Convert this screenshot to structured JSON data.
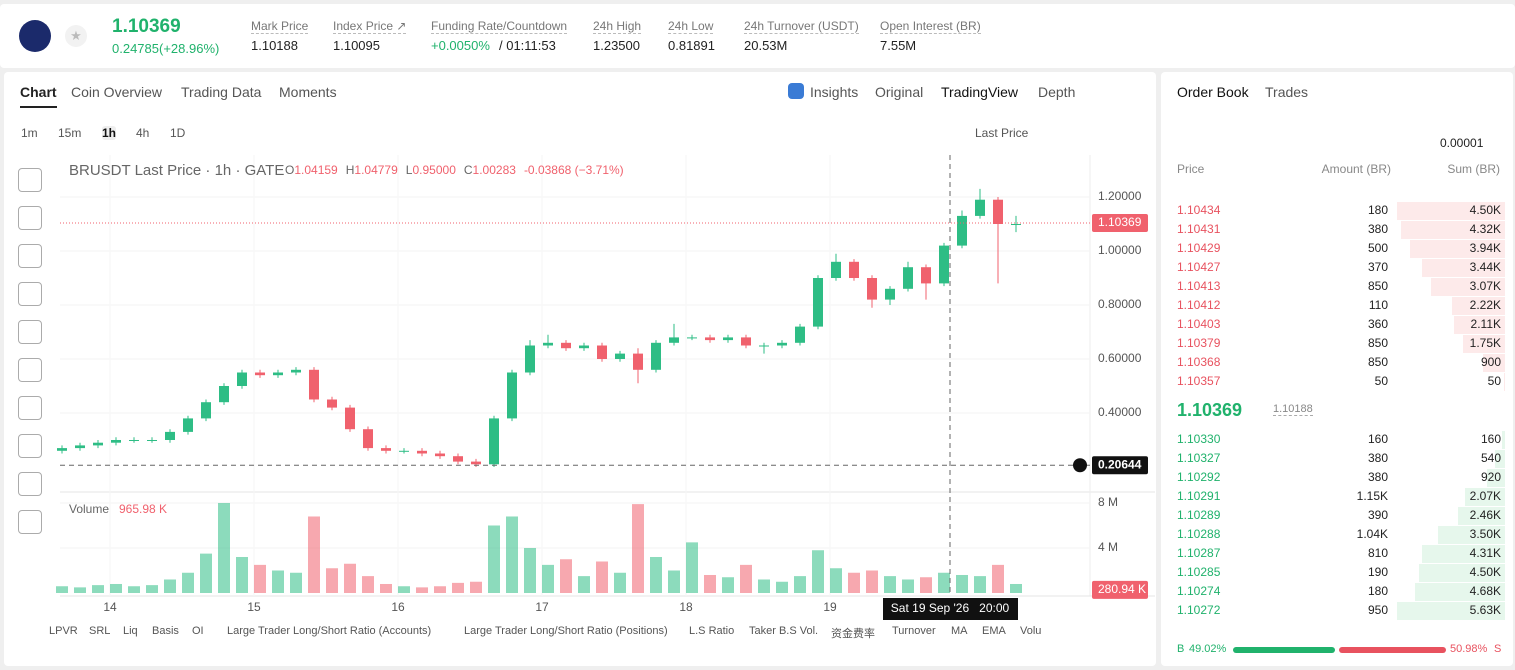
{
  "header": {
    "price": "1.10369",
    "change": "0.24785(+28.96%)",
    "stats": [
      {
        "label": "Mark Price",
        "value": "1.10188"
      },
      {
        "label": "Index Price ↗",
        "value": "1.10095"
      },
      {
        "label": "Funding Rate/Countdown",
        "value": "+0.0050%",
        "extra": "/ 01:11:53"
      },
      {
        "label": "24h High",
        "value": "1.23500"
      },
      {
        "label": "24h Low",
        "value": "0.81891"
      },
      {
        "label": "24h Turnover (USDT)",
        "value": "20.53M"
      },
      {
        "label": "Open Interest (BR)",
        "value": "7.55M"
      }
    ]
  },
  "tabs": [
    "Chart",
    "Coin Overview",
    "Trading Data",
    "Moments"
  ],
  "views": [
    "Insights",
    "Original",
    "TradingView",
    "Depth"
  ],
  "intervals": [
    "1m",
    "15m",
    "1h",
    "4h",
    "1D"
  ],
  "price_type": "Last Price",
  "indicators": [
    "LPVR",
    "SRL",
    "Liq",
    "Basis",
    "OI",
    "Large Trader Long/Short Ratio (Accounts)",
    "Large Trader Long/Short Ratio (Positions)",
    "L.S Ratio",
    "Taker B.S Vol.",
    "资金费率",
    "Turnover",
    "MA",
    "EMA",
    "Volu"
  ],
  "chart_data": {
    "type": "candlestick",
    "legend": "BRUSDT Last Price · 1h · GATE",
    "ohlc_text": [
      [
        "O",
        "1.04159"
      ],
      [
        "H",
        "1.04779"
      ],
      [
        "L",
        "0.95000"
      ],
      [
        "C",
        "1.00283"
      ],
      [
        "",
        "-0.03868 (−3.71%)"
      ]
    ],
    "up_color": "#2ebd85",
    "down_color": "#f0616d",
    "open": [
      0.26,
      0.27,
      0.28,
      0.29,
      0.3,
      0.3,
      0.3,
      0.33,
      0.38,
      0.44,
      0.5,
      0.55,
      0.54,
      0.55,
      0.56,
      0.45,
      0.42,
      0.34,
      0.27,
      0.26,
      0.26,
      0.25,
      0.24,
      0.22,
      0.21,
      0.38,
      0.55,
      0.65,
      0.66,
      0.64,
      0.65,
      0.6,
      0.62,
      0.56,
      0.66,
      0.68,
      0.68,
      0.67,
      0.68,
      0.65,
      0.65,
      0.66,
      0.72,
      0.9,
      0.96,
      0.9,
      0.82,
      0.86,
      0.94,
      0.88,
      1.02,
      1.13,
      1.19,
      1.1
    ],
    "high": [
      0.28,
      0.29,
      0.3,
      0.31,
      0.31,
      0.31,
      0.34,
      0.39,
      0.45,
      0.51,
      0.56,
      0.56,
      0.56,
      0.57,
      0.57,
      0.46,
      0.43,
      0.35,
      0.28,
      0.27,
      0.27,
      0.26,
      0.25,
      0.23,
      0.39,
      0.56,
      0.67,
      0.69,
      0.67,
      0.66,
      0.66,
      0.63,
      0.64,
      0.67,
      0.73,
      0.69,
      0.69,
      0.69,
      0.69,
      0.66,
      0.67,
      0.73,
      0.91,
      0.99,
      0.97,
      0.91,
      0.87,
      0.96,
      0.95,
      1.03,
      1.15,
      1.23,
      1.2,
      1.13
    ],
    "low": [
      0.25,
      0.26,
      0.27,
      0.28,
      0.29,
      0.29,
      0.29,
      0.32,
      0.37,
      0.43,
      0.49,
      0.53,
      0.53,
      0.54,
      0.44,
      0.41,
      0.33,
      0.26,
      0.25,
      0.25,
      0.24,
      0.23,
      0.21,
      0.2,
      0.2,
      0.37,
      0.54,
      0.64,
      0.63,
      0.63,
      0.59,
      0.59,
      0.51,
      0.55,
      0.65,
      0.67,
      0.66,
      0.66,
      0.64,
      0.62,
      0.64,
      0.65,
      0.71,
      0.89,
      0.89,
      0.79,
      0.8,
      0.85,
      0.82,
      0.87,
      1.01,
      1.12,
      0.88,
      1.07
    ],
    "close": [
      0.27,
      0.28,
      0.29,
      0.3,
      0.3,
      0.3,
      0.33,
      0.38,
      0.44,
      0.5,
      0.55,
      0.54,
      0.55,
      0.56,
      0.45,
      0.42,
      0.34,
      0.27,
      0.26,
      0.26,
      0.25,
      0.24,
      0.22,
      0.21,
      0.38,
      0.55,
      0.65,
      0.66,
      0.64,
      0.65,
      0.6,
      0.62,
      0.56,
      0.66,
      0.68,
      0.68,
      0.67,
      0.68,
      0.65,
      0.65,
      0.66,
      0.72,
      0.9,
      0.96,
      0.9,
      0.82,
      0.86,
      0.94,
      0.88,
      1.02,
      1.13,
      1.19,
      1.1,
      1.1
    ],
    "volume": [
      0.6,
      0.5,
      0.7,
      0.8,
      0.6,
      0.7,
      1.2,
      1.8,
      3.5,
      8.0,
      3.2,
      2.5,
      2.0,
      1.8,
      6.8,
      2.2,
      2.6,
      1.5,
      0.8,
      0.6,
      0.5,
      0.6,
      0.9,
      1.0,
      6.0,
      6.8,
      4.0,
      2.5,
      3.0,
      1.5,
      2.8,
      1.8,
      7.9,
      3.2,
      2.0,
      4.5,
      1.6,
      1.4,
      2.5,
      1.2,
      1.0,
      1.5,
      3.8,
      2.2,
      1.8,
      2.0,
      1.5,
      1.2,
      1.4,
      1.8,
      1.6,
      1.5,
      2.5,
      0.8
    ],
    "ylim": [
      0.1148,
      1.3556
    ],
    "yticks": [
      {
        "value": 1.2,
        "label": "1.20000"
      },
      {
        "value": 1.0,
        "label": "1.00000"
      },
      {
        "value": 0.8,
        "label": "0.80000"
      },
      {
        "value": 0.6,
        "label": "0.60000"
      },
      {
        "value": 0.4,
        "label": "0.40000"
      }
    ],
    "last_price": 1.10369,
    "crosshair_price": 0.20644,
    "crosshair_time": "Sat 19 Sep '26   20:00",
    "x_labels": [
      "14",
      "15",
      "16",
      "17",
      "18",
      "19"
    ],
    "volume_title": "Volume",
    "volume_label": "965.98 K",
    "volume_last": {
      "value": 0.28094,
      "label": "280.94 K"
    },
    "volume_ylim": [
      0,
      8.71
    ],
    "volume_yticks": [
      {
        "value": 8,
        "label": "8 M"
      },
      {
        "value": 4,
        "label": "4 M"
      }
    ]
  },
  "order_book": {
    "tabs": [
      "Order Book",
      "Trades"
    ],
    "tick": "0.00001",
    "columns": [
      "Price",
      "Amount (BR)",
      "Sum (BR)"
    ],
    "asks": {
      "price": [
        "1.10434",
        "1.10431",
        "1.10429",
        "1.10427",
        "1.10413",
        "1.10412",
        "1.10403",
        "1.10379",
        "1.10368",
        "1.10357"
      ],
      "amount": [
        "180",
        "380",
        "500",
        "370",
        "850",
        "110",
        "360",
        "850",
        "850",
        "50"
      ],
      "sum": [
        4500,
        4320,
        3940,
        3440,
        3070,
        2220,
        2110,
        1750,
        900,
        50
      ],
      "sum_labels": [
        "4.50K",
        "4.32K",
        "3.94K",
        "3.44K",
        "3.07K",
        "2.22K",
        "2.11K",
        "1.75K",
        "900",
        "50"
      ]
    },
    "mid_price": "1.10369",
    "mark": "1.10188",
    "bids": {
      "price": [
        "1.10330",
        "1.10327",
        "1.10292",
        "1.10291",
        "1.10289",
        "1.10288",
        "1.10287",
        "1.10285",
        "1.10274",
        "1.10272"
      ],
      "amount": [
        "160",
        "380",
        "380",
        "1.15K",
        "390",
        "1.04K",
        "810",
        "190",
        "180",
        "950"
      ],
      "sum": [
        160,
        540,
        920,
        2070,
        2460,
        3500,
        4310,
        4500,
        4680,
        5630
      ],
      "sum_labels": [
        "160",
        "540",
        "920",
        "2.07K",
        "2.46K",
        "3.50K",
        "4.31K",
        "4.50K",
        "4.68K",
        "5.63K"
      ]
    },
    "buy": "B",
    "sell": "S",
    "buy_ratio": 49.02,
    "buy_label": "49.02%",
    "sell_ratio": 50.98,
    "sell_label": "50.98%"
  }
}
